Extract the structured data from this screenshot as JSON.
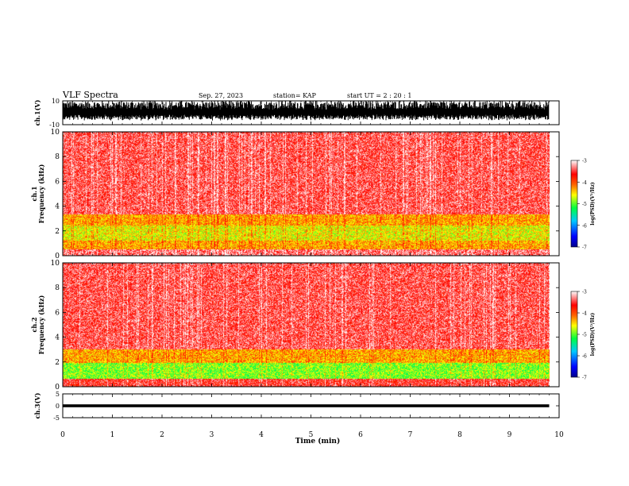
{
  "header": {
    "title": "VLF Spectra",
    "date": "Sep. 27, 2023",
    "station": "station= KAP",
    "start": "start  UT  =   2  : 20 : 1"
  },
  "colors": {
    "spectrum_colormap": [
      "#00008b",
      "#0000ff",
      "#00c8ff",
      "#00ff40",
      "#ffff00",
      "#ff6400",
      "#ff0000",
      "#ffffff"
    ],
    "waveform": "#000000"
  },
  "chart_data": [
    {
      "type": "line",
      "panel": "ch1-waveform",
      "ylabel": "ch.1(V)",
      "ylim": [
        -10,
        10
      ],
      "yticks": [
        "10",
        "-10"
      ],
      "xlim": [
        0,
        10
      ],
      "description_values": {
        "typical_amplitude_range": [
          -6,
          10
        ]
      }
    },
    {
      "type": "heatmap",
      "panel": "ch1-spectrogram",
      "ylabel": "ch.1\nFrequency  (kHz)",
      "ylim": [
        0,
        10
      ],
      "yticks": [
        "0",
        "2",
        "4",
        "6",
        "8",
        "10"
      ],
      "xlim": [
        0,
        9.8
      ],
      "colorbar": {
        "label": "log(PSD)(V²/Hz)",
        "range": [
          -7,
          -3
        ],
        "ticks": [
          "-3",
          "-4",
          "-5",
          "-6",
          "-7"
        ]
      },
      "bands": [
        {
          "from_khz": 0.0,
          "to_khz": 0.5,
          "level": -3.3
        },
        {
          "from_khz": 0.5,
          "to_khz": 1.2,
          "level": -4.3
        },
        {
          "from_khz": 1.2,
          "to_khz": 2.4,
          "level": -4.6
        },
        {
          "from_khz": 2.4,
          "to_khz": 3.3,
          "level": -4.3
        },
        {
          "from_khz": 3.3,
          "to_khz": 10.0,
          "level": -3.4
        }
      ]
    },
    {
      "type": "heatmap",
      "panel": "ch2-spectrogram",
      "ylabel": "ch.2\nFrequency  (kHz)",
      "ylim": [
        0,
        10
      ],
      "yticks": [
        "0",
        "2",
        "4",
        "6",
        "8",
        "10"
      ],
      "xlim": [
        0,
        9.8
      ],
      "colorbar": {
        "label": "log(PSD)(V²/Hz)",
        "range": [
          -7,
          -3
        ],
        "ticks": [
          "-3",
          "-4",
          "-5",
          "-6",
          "-7"
        ]
      },
      "bands": [
        {
          "from_khz": 0.0,
          "to_khz": 0.6,
          "level": -3.5
        },
        {
          "from_khz": 0.6,
          "to_khz": 1.9,
          "level": -4.9
        },
        {
          "from_khz": 1.9,
          "to_khz": 3.0,
          "level": -4.3
        },
        {
          "from_khz": 3.0,
          "to_khz": 10.0,
          "level": -3.4
        }
      ]
    },
    {
      "type": "line",
      "panel": "ch3-waveform",
      "ylabel": "ch.3(V)",
      "ylim": [
        -5,
        5
      ],
      "yticks": [
        "5",
        "0",
        "-5"
      ],
      "xlim": [
        0,
        10
      ],
      "xlabel": "Time  (min)",
      "xticks": [
        "0",
        "1",
        "2",
        "3",
        "4",
        "5",
        "6",
        "7",
        "8",
        "9",
        "10"
      ],
      "description_values": {
        "level_band": [
          -0.6,
          0.6
        ]
      }
    }
  ]
}
